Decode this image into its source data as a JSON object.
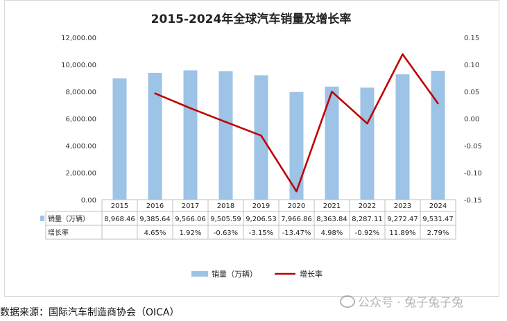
{
  "chart_data": {
    "type": "bar+line",
    "title": "2015-2024年全球汽车销量及增长率",
    "categories": [
      "2015",
      "2016",
      "2017",
      "2018",
      "2019",
      "2020",
      "2021",
      "2022",
      "2023",
      "2024"
    ],
    "series": [
      {
        "name": "销量（万辆）",
        "type": "bar",
        "axis": "left",
        "color": "#9DC3E6",
        "values": [
          8968.46,
          9385.64,
          9566.06,
          9505.59,
          9206.53,
          7966.86,
          8363.84,
          8287.11,
          9272.47,
          9531.47
        ],
        "labels": [
          "8,968.46",
          "9,385.64",
          "9,566.06",
          "9,505.59",
          "9,206.53",
          "7,966.86",
          "8,363.84",
          "8,287.11",
          "9,272.47",
          "9,531.47"
        ]
      },
      {
        "name": "增长率",
        "type": "line",
        "axis": "right",
        "color": "#C00000",
        "values": [
          null,
          0.0465,
          0.0192,
          -0.0063,
          -0.0315,
          -0.1347,
          0.0498,
          -0.0092,
          0.1189,
          0.0279
        ],
        "labels": [
          "",
          "4.65%",
          "1.92%",
          "-0.63%",
          "-3.15%",
          "-13.47%",
          "4.98%",
          "-0.92%",
          "11.89%",
          "2.79%"
        ]
      }
    ],
    "y_left": {
      "ylim": [
        0,
        12000
      ],
      "ticks": [
        0,
        2000,
        4000,
        6000,
        8000,
        10000,
        12000
      ],
      "tick_labels": [
        "0.00",
        "2,000.00",
        "4,000.00",
        "6,000.00",
        "8,000.00",
        "10,000.00",
        "12,000.00"
      ]
    },
    "y_right": {
      "ylim": [
        -0.15,
        0.15
      ],
      "ticks": [
        -0.15,
        -0.1,
        -0.05,
        0.0,
        0.05,
        0.1,
        0.15
      ],
      "tick_labels": [
        "-0.15",
        "-0.10",
        "-0.05",
        "0.00",
        "0.05",
        "0.10",
        "0.15"
      ]
    },
    "table_row_labels": [
      "销量（万辆）",
      "增长率"
    ],
    "legend_position": "bottom",
    "grid": false
  },
  "source_text": "数据来源：国际汽车制造商协会（OICA）",
  "watermark_text": "公众号 · 兔子兔子兔"
}
